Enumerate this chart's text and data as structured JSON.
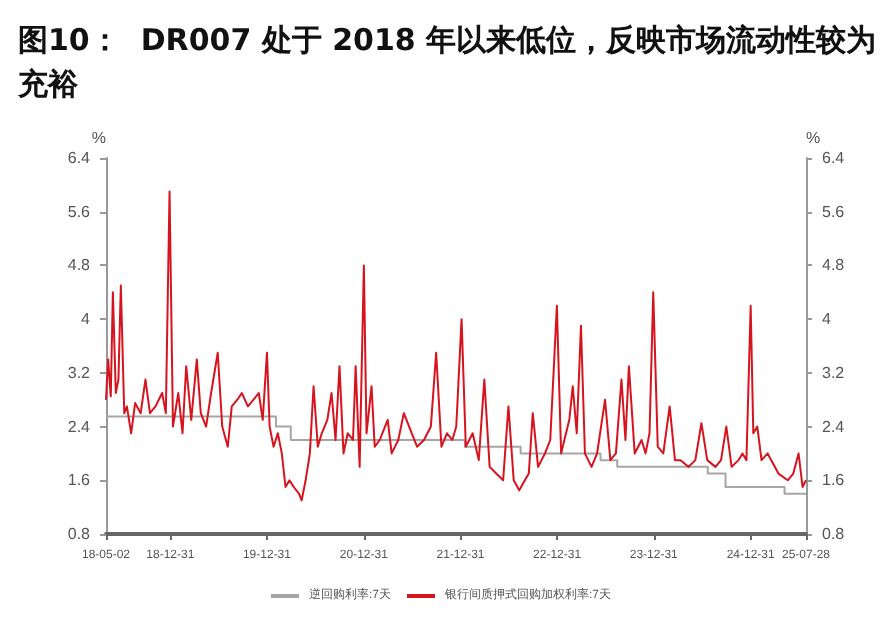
{
  "chart_data": {
    "type": "line",
    "title": "图10：  DR007 处于 2018 年以来低位，反映市场流动性较为充裕",
    "ylabel": "%",
    "y2label": "%",
    "xlim": [
      "2018-05-02",
      "2025-07-28"
    ],
    "xticks": [
      {
        "value": "2018-05-02",
        "label": "18-05-02"
      },
      {
        "value": "2018-12-31",
        "label": "18-12-31"
      },
      {
        "value": "2019-12-31",
        "label": "19-12-31"
      },
      {
        "value": "2020-12-31",
        "label": "20-12-31"
      },
      {
        "value": "2021-12-31",
        "label": "21-12-31"
      },
      {
        "value": "2022-12-31",
        "label": "22-12-31"
      },
      {
        "value": "2023-12-31",
        "label": "23-12-31"
      },
      {
        "value": "2024-12-31",
        "label": "24-12-31"
      },
      {
        "value": "2025-07-28",
        "label": "25-07-28"
      }
    ],
    "ylim": [
      0.8,
      6.4
    ],
    "yticks": [
      0.8,
      1.6,
      2.4,
      3.2,
      4,
      4.8,
      5.6,
      6.4
    ],
    "y2lim": [
      0.8,
      6.4
    ],
    "y2ticks": [
      0.8,
      1.6,
      2.4,
      3.2,
      4,
      4.8,
      5.6,
      6.4
    ],
    "grid": false,
    "legend": "bottom",
    "marker": "none",
    "line_style": "solid",
    "series": [
      {
        "name": "逆回购利率:7天",
        "type": "step",
        "color": "#a6a6a6",
        "x": [
          "2018-05-02",
          "2020-02-03",
          "2020-03-30",
          "2022-01-17",
          "2022-08-15",
          "2023-06-13",
          "2023-08-15",
          "2024-07-22",
          "2024-09-27",
          "2025-05-08",
          "2025-07-28"
        ],
        "values": [
          2.55,
          2.4,
          2.2,
          2.1,
          2.0,
          1.9,
          1.8,
          1.7,
          1.5,
          1.4,
          1.4
        ]
      },
      {
        "name": "银行间质押式回购加权利率:7天",
        "color": "#d7141e",
        "x": [
          "2018-05-02",
          "2018-05-10",
          "2018-05-20",
          "2018-05-28",
          "2018-06-08",
          "2018-06-18",
          "2018-06-27",
          "2018-07-10",
          "2018-07-20",
          "2018-08-05",
          "2018-08-20",
          "2018-09-10",
          "2018-09-28",
          "2018-10-15",
          "2018-11-05",
          "2018-11-30",
          "2018-12-14",
          "2018-12-28",
          "2019-01-10",
          "2019-01-30",
          "2019-02-15",
          "2019-03-01",
          "2019-03-20",
          "2019-04-10",
          "2019-04-25",
          "2019-05-15",
          "2019-06-03",
          "2019-06-28",
          "2019-07-15",
          "2019-08-05",
          "2019-08-20",
          "2019-09-10",
          "2019-09-27",
          "2019-10-20",
          "2019-11-10",
          "2019-11-30",
          "2019-12-15",
          "2019-12-31",
          "2020-01-10",
          "2020-01-25",
          "2020-02-10",
          "2020-02-25",
          "2020-03-10",
          "2020-03-25",
          "2020-04-10",
          "2020-04-30",
          "2020-05-10",
          "2020-05-25",
          "2020-06-10",
          "2020-06-24",
          "2020-07-10",
          "2020-07-25",
          "2020-08-15",
          "2020-08-31",
          "2020-09-15",
          "2020-09-30",
          "2020-10-15",
          "2020-10-31",
          "2020-11-20",
          "2020-11-30",
          "2020-12-15",
          "2020-12-31",
          "2021-01-10",
          "2021-01-29",
          "2021-02-10",
          "2021-03-01",
          "2021-03-31",
          "2021-04-15",
          "2021-05-10",
          "2021-05-31",
          "2021-06-30",
          "2021-07-20",
          "2021-08-15",
          "2021-09-10",
          "2021-09-30",
          "2021-10-20",
          "2021-11-10",
          "2021-11-30",
          "2021-12-15",
          "2022-01-04",
          "2022-01-20",
          "2022-02-15",
          "2022-03-10",
          "2022-03-31",
          "2022-04-20",
          "2022-05-15",
          "2022-06-10",
          "2022-06-30",
          "2022-07-20",
          "2022-08-10",
          "2022-08-31",
          "2022-09-15",
          "2022-09-30",
          "2022-10-20",
          "2022-11-15",
          "2022-12-05",
          "2022-12-30",
          "2023-01-15",
          "2023-02-15",
          "2023-02-28",
          "2023-03-15",
          "2023-03-31",
          "2023-04-15",
          "2023-05-10",
          "2023-05-31",
          "2023-06-30",
          "2023-07-20",
          "2023-08-10",
          "2023-08-31",
          "2023-09-15",
          "2023-09-28",
          "2023-10-20",
          "2023-11-15",
          "2023-11-30",
          "2023-12-15",
          "2023-12-29",
          "2024-01-15",
          "2024-02-05",
          "2024-02-29",
          "2024-03-20",
          "2024-04-10",
          "2024-05-10",
          "2024-06-05",
          "2024-06-28",
          "2024-07-20",
          "2024-08-20",
          "2024-09-10",
          "2024-09-30",
          "2024-10-20",
          "2024-11-15",
          "2024-11-30",
          "2024-12-15",
          "2024-12-31",
          "2025-01-10",
          "2025-01-25",
          "2025-02-10",
          "2025-03-05",
          "2025-04-15",
          "2025-05-20",
          "2025-06-10",
          "2025-06-30",
          "2025-07-15",
          "2025-07-28"
        ],
        "values": [
          2.8,
          3.4,
          2.85,
          4.4,
          2.9,
          3.1,
          4.5,
          2.6,
          2.7,
          2.3,
          2.75,
          2.6,
          3.1,
          2.6,
          2.7,
          2.9,
          2.6,
          5.9,
          2.4,
          2.9,
          2.3,
          3.3,
          2.5,
          3.4,
          2.6,
          2.4,
          2.9,
          3.5,
          2.4,
          2.1,
          2.7,
          2.8,
          2.9,
          2.7,
          2.8,
          2.9,
          2.5,
          3.5,
          2.4,
          2.1,
          2.3,
          2.0,
          1.5,
          1.6,
          1.5,
          1.4,
          1.3,
          1.6,
          2.0,
          3.0,
          2.1,
          2.3,
          2.5,
          2.9,
          2.2,
          3.3,
          2.0,
          2.3,
          2.2,
          3.3,
          1.8,
          4.8,
          2.3,
          3.0,
          2.1,
          2.2,
          2.5,
          2.0,
          2.2,
          2.6,
          2.3,
          2.1,
          2.2,
          2.4,
          3.5,
          2.1,
          2.3,
          2.2,
          2.4,
          4.0,
          2.1,
          2.3,
          1.9,
          3.1,
          1.8,
          1.7,
          1.6,
          2.7,
          1.6,
          1.45,
          1.6,
          1.7,
          2.6,
          1.8,
          2.0,
          2.2,
          4.2,
          2.0,
          2.5,
          3.0,
          2.3,
          3.9,
          2.0,
          1.8,
          2.0,
          2.8,
          1.9,
          2.0,
          3.1,
          2.2,
          3.3,
          2.0,
          2.2,
          2.0,
          2.3,
          4.4,
          2.1,
          2.0,
          2.7,
          1.9,
          1.9,
          1.8,
          1.9,
          2.45,
          1.9,
          1.8,
          1.9,
          2.4,
          1.8,
          1.9,
          2.0,
          1.9,
          4.2,
          2.3,
          2.4,
          1.9,
          2.0,
          1.7,
          1.6,
          1.7,
          2.0,
          1.5,
          1.6
        ]
      }
    ]
  }
}
